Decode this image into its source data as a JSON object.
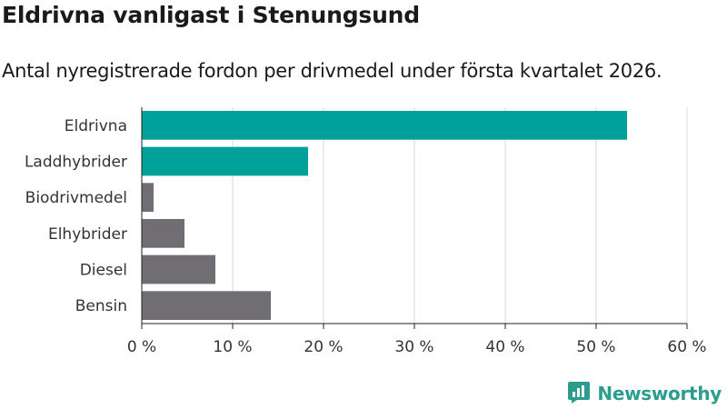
{
  "header": {
    "title": "Eldrivna vanligast i Stenungsund",
    "subtitle": "Antal nyregistrerade fordon per drivmedel under första kvartalet 2026."
  },
  "brand": {
    "name": "Newsworthy",
    "logo_icon": "bar-chart-icon",
    "color": "#2a9d8f"
  },
  "colors": {
    "highlight": "#00a19a",
    "default": "#706e73",
    "grid": "#d9d9d9"
  },
  "chart_data": {
    "type": "bar",
    "orientation": "horizontal",
    "categories": [
      "Eldrivna",
      "Laddhybrider",
      "Biodrivmedel",
      "Elhybrider",
      "Diesel",
      "Bensin"
    ],
    "values": [
      53.4,
      18.3,
      1.3,
      4.7,
      8.1,
      14.2
    ],
    "highlighted": [
      true,
      true,
      false,
      false,
      false,
      false
    ],
    "xlim": [
      0,
      60
    ],
    "xticks": [
      0,
      10,
      20,
      30,
      40,
      50,
      60
    ],
    "xtick_labels": [
      "0 %",
      "10 %",
      "20 %",
      "30 %",
      "40 %",
      "50 %",
      "60 %"
    ],
    "grid": true
  }
}
